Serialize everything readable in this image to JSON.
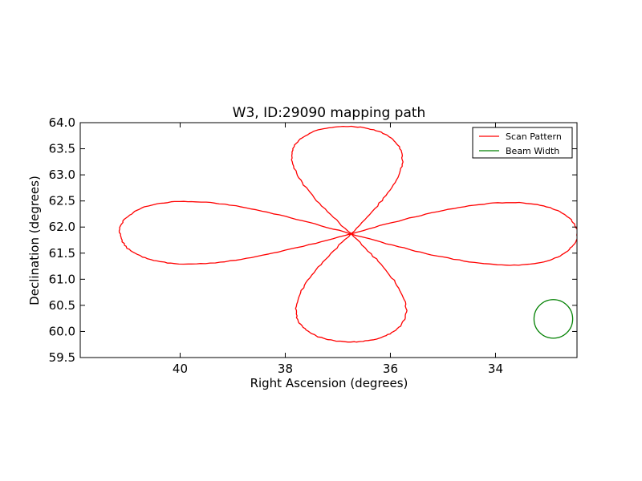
{
  "chart_data": {
    "type": "line",
    "title": "W3, ID:29090 mapping path",
    "xlabel": "Right Ascension (degrees)",
    "ylabel": "Declination (degrees)",
    "xlim": [
      41.9,
      32.45
    ],
    "ylim": [
      59.5,
      64.0
    ],
    "x_ticks": [
      40,
      38,
      36,
      34
    ],
    "x_tick_labels": [
      "40",
      "38",
      "36",
      "34"
    ],
    "y_ticks": [
      59.5,
      60.0,
      60.5,
      61.0,
      61.5,
      62.0,
      62.5,
      63.0,
      63.5,
      64.0
    ],
    "y_tick_labels": [
      "59.5",
      "60.0",
      "60.5",
      "61.0",
      "61.5",
      "62.0",
      "62.5",
      "63.0",
      "63.5",
      "64.0"
    ],
    "grid": false,
    "legend_position": "top-right",
    "colors": {
      "scan": "#ff0000",
      "beam": "#008000"
    },
    "series": [
      {
        "name": "Scan Pattern",
        "kind": "scan-path",
        "center": [
          36.75,
          61.87
        ],
        "petals": [
          {
            "direction": "up",
            "tip_x": 36.85,
            "tip_y": 63.93,
            "half_width_x": 1.05
          },
          {
            "direction": "right",
            "tip_x": 32.45,
            "tip_y": 61.87,
            "half_width_y": 0.6
          },
          {
            "direction": "down",
            "tip_x": 36.75,
            "tip_y": 59.8,
            "half_width_x": 1.05
          },
          {
            "direction": "left",
            "tip_x": 41.15,
            "tip_y": 61.9,
            "half_width_y": 0.6
          }
        ]
      },
      {
        "name": "Beam Width",
        "kind": "circle",
        "center": [
          32.9,
          60.24
        ],
        "radius_deg": 0.37
      }
    ]
  }
}
